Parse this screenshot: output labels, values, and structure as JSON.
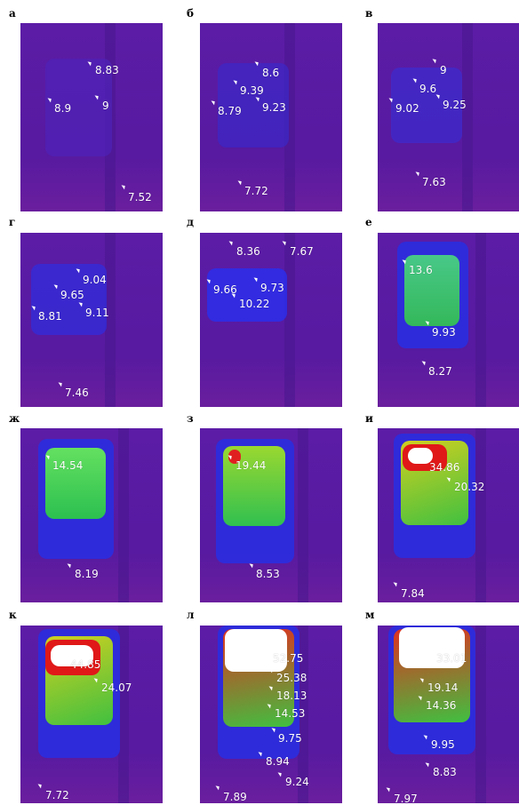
{
  "panels": [
    {
      "id": "a",
      "letter": "а",
      "readings": [
        {
          "value": "8.83"
        },
        {
          "value": "8.9"
        },
        {
          "value": "9"
        },
        {
          "value": "7.52"
        }
      ]
    },
    {
      "id": "b",
      "letter": "б",
      "readings": [
        {
          "value": "8.6"
        },
        {
          "value": "9.39"
        },
        {
          "value": "8.79"
        },
        {
          "value": "9.23"
        },
        {
          "value": "7.72"
        }
      ]
    },
    {
      "id": "v",
      "letter": "в",
      "readings": [
        {
          "value": "9"
        },
        {
          "value": "9.6"
        },
        {
          "value": "9.02"
        },
        {
          "value": "9.25"
        },
        {
          "value": "7.63"
        }
      ]
    },
    {
      "id": "g",
      "letter": "г",
      "readings": [
        {
          "value": "9.04"
        },
        {
          "value": "9.65"
        },
        {
          "value": "8.81"
        },
        {
          "value": "9.11"
        },
        {
          "value": "7.46"
        }
      ]
    },
    {
      "id": "d",
      "letter": "д",
      "readings": [
        {
          "value": "8.36"
        },
        {
          "value": "7.67"
        },
        {
          "value": "9.66"
        },
        {
          "value": "9.73"
        },
        {
          "value": "10.22"
        }
      ]
    },
    {
      "id": "e",
      "letter": "е",
      "readings": [
        {
          "value": "13.6"
        },
        {
          "value": "9.93"
        },
        {
          "value": "8.27"
        }
      ]
    },
    {
      "id": "zh",
      "letter": "ж",
      "readings": [
        {
          "value": "14.54"
        },
        {
          "value": "8.19"
        }
      ]
    },
    {
      "id": "z",
      "letter": "з",
      "readings": [
        {
          "value": "19.44"
        },
        {
          "value": "8.53"
        }
      ]
    },
    {
      "id": "i",
      "letter": "и",
      "readings": [
        {
          "value": "34.86"
        },
        {
          "value": "20.32"
        },
        {
          "value": "7.84"
        }
      ]
    },
    {
      "id": "k",
      "letter": "к",
      "readings": [
        {
          "value": "44.85"
        },
        {
          "value": "24.07"
        },
        {
          "value": "7.72"
        }
      ]
    },
    {
      "id": "l",
      "letter": "л",
      "readings": [
        {
          "value": "52.75"
        },
        {
          "value": "25.38"
        },
        {
          "value": "18.13"
        },
        {
          "value": "14.53"
        },
        {
          "value": "9.75"
        },
        {
          "value": "8.94"
        },
        {
          "value": "9.24"
        },
        {
          "value": "7.89"
        }
      ]
    },
    {
      "id": "m",
      "letter": "м",
      "readings": [
        {
          "value": "33.01"
        },
        {
          "value": "19.14"
        },
        {
          "value": "14.36"
        },
        {
          "value": "9.95"
        },
        {
          "value": "8.83"
        },
        {
          "value": "7.97"
        }
      ]
    }
  ],
  "colors": {
    "base": "#5a1aa0",
    "cool_blue": "#2a2ee0",
    "warm_green": "#38c838",
    "hot_red": "#e01818",
    "white_hot": "#ffffff"
  }
}
